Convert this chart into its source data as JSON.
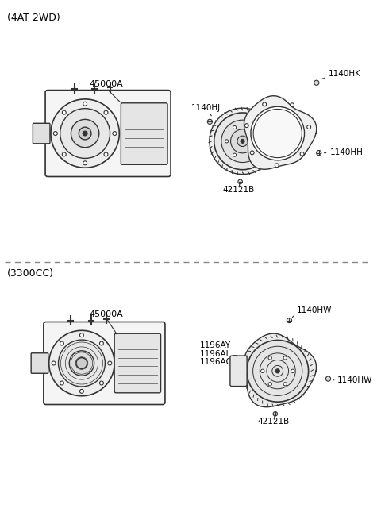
{
  "background_color": "#ffffff",
  "border_color": "#000000",
  "divider_color": "#888888",
  "text_color": "#000000",
  "line_color": "#333333",
  "part_color": "#cccccc",
  "section1_label": "(4AT 2WD)",
  "section2_label": "(3300CC)",
  "parts_top": {
    "transmission_label": "45000A",
    "torque_converter_label": "42121B",
    "cover_label": "1140HK",
    "bolt1_label": "1140HJ",
    "bolt2_label": "1140HH"
  },
  "parts_bottom": {
    "transmission_label": "45000A",
    "torque_converter_label": "42121B",
    "cover_label": "1140HW",
    "bolt_label": "1140HW",
    "bracket_labels": [
      "1196AY",
      "1196AL",
      "1196AC"
    ]
  },
  "figsize": [
    4.8,
    6.55
  ],
  "dpi": 100
}
